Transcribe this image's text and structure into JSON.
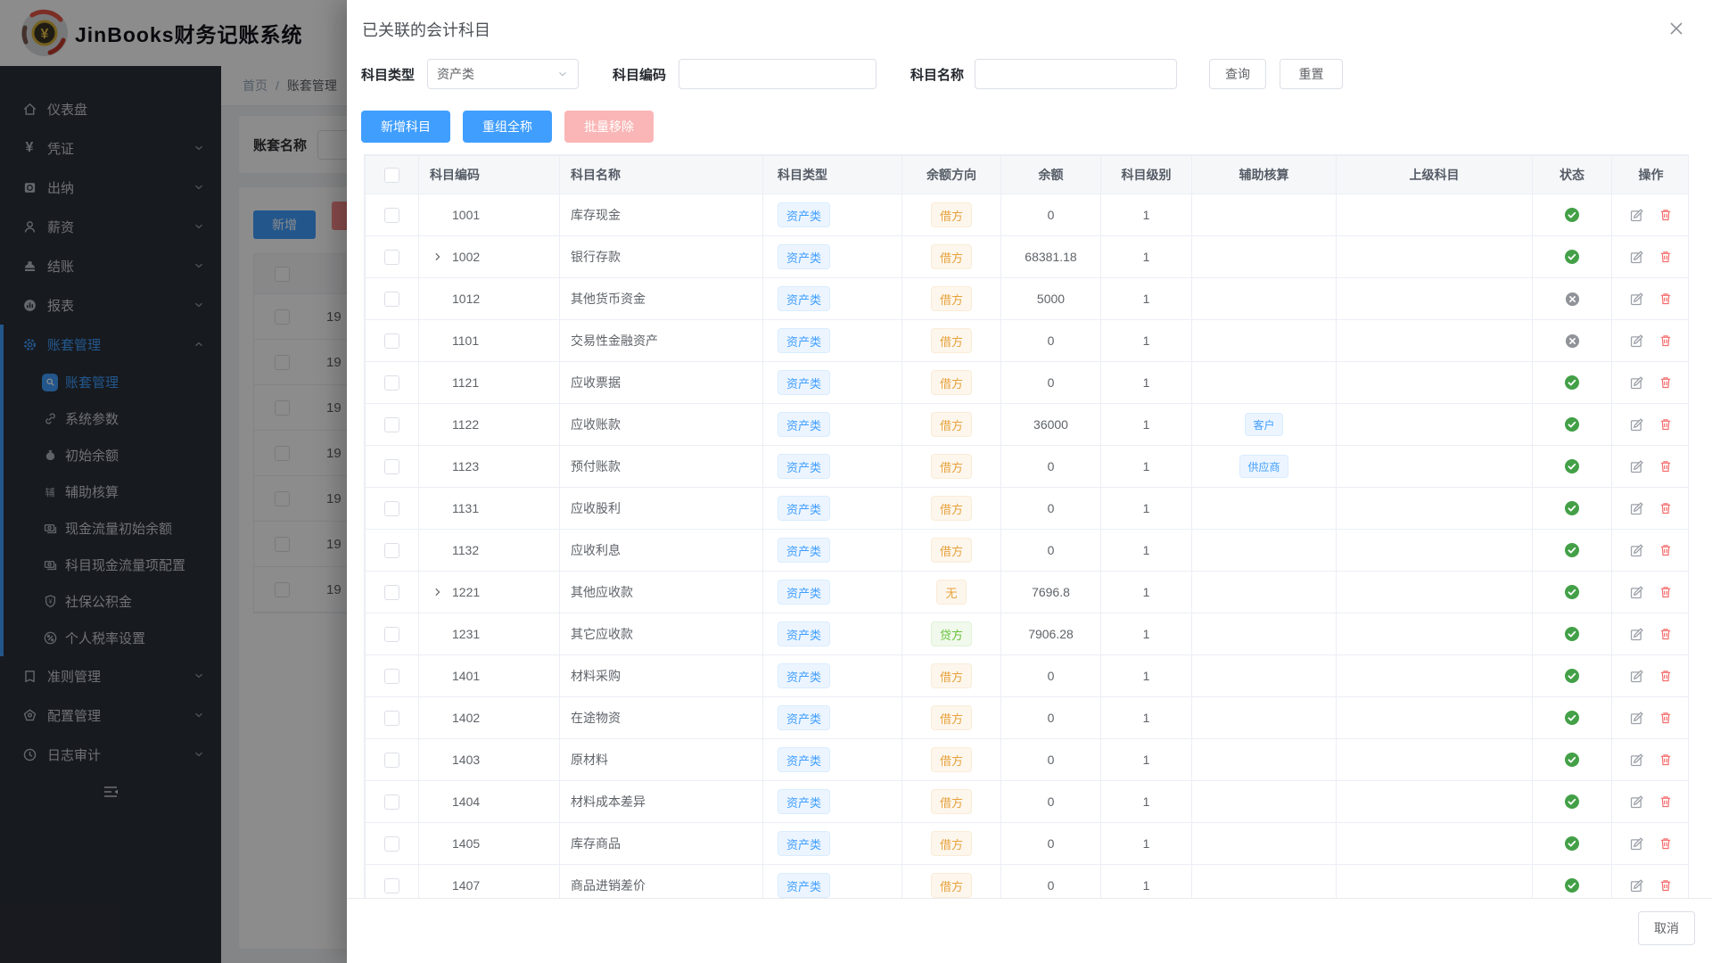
{
  "topbar": {
    "title": "JinBooks财务记账系统"
  },
  "sidebar": {
    "main": [
      {
        "label": "仪表盘",
        "icon": "home-icon",
        "chevron": false
      },
      {
        "label": "凭证",
        "icon": "yen-icon",
        "chevron": true
      },
      {
        "label": "出纳",
        "icon": "ledger-icon",
        "chevron": true
      },
      {
        "label": "薪资",
        "icon": "user-icon",
        "chevron": true
      },
      {
        "label": "结账",
        "icon": "stamp-icon",
        "chevron": true
      },
      {
        "label": "报表",
        "icon": "chart-icon",
        "chevron": true
      },
      {
        "label": "账套管理",
        "icon": "gear-icon",
        "chevron": "up",
        "active": true
      }
    ],
    "submenu": [
      {
        "label": "账套管理",
        "icon": "search-badge-icon",
        "active": true
      },
      {
        "label": "系统参数",
        "icon": "link-icon"
      },
      {
        "label": "初始余额",
        "icon": "moneybag-icon"
      },
      {
        "label": "辅助核算",
        "icon": "fu-char-icon",
        "char": "辅"
      },
      {
        "label": "现金流量初始余额",
        "icon": "cash-icon"
      },
      {
        "label": "科目现金流量项配置",
        "icon": "cash-icon"
      },
      {
        "label": "社保公积金",
        "icon": "shield-icon"
      },
      {
        "label": "个人税率设置",
        "icon": "percent-icon"
      }
    ],
    "bottom": [
      {
        "label": "准则管理",
        "icon": "book-icon",
        "chevron": true
      },
      {
        "label": "配置管理",
        "icon": "pentagon-icon",
        "chevron": true
      },
      {
        "label": "日志审计",
        "icon": "clock-icon",
        "chevron": true
      }
    ]
  },
  "content": {
    "breadcrumb": {
      "home": "首页",
      "sep": "/",
      "current": "账套管理"
    },
    "account_name_label": "账套名称",
    "add_button": "新增",
    "table": {
      "rows": [
        {
          "label": "19"
        },
        {
          "label": "19"
        },
        {
          "label": "19"
        },
        {
          "label": "19"
        },
        {
          "label": "19"
        },
        {
          "label": "19"
        },
        {
          "label": "19"
        }
      ]
    }
  },
  "modal": {
    "title": "已关联的会计科目",
    "filters": {
      "type_label": "科目类型",
      "type_value": "资产类",
      "code_label": "科目编码",
      "code_value": "",
      "name_label": "科目名称",
      "name_value": "",
      "search_button": "查询",
      "reset_button": "重置"
    },
    "actions": {
      "add_subject": "新增科目",
      "rebuild_fullname": "重组全称",
      "batch_remove": "批量移除"
    },
    "table": {
      "headers": [
        "科目编码",
        "科目名称",
        "科目类型",
        "余额方向",
        "余额",
        "科目级别",
        "辅助核算",
        "上级科目",
        "状态",
        "操作"
      ],
      "rows": [
        {
          "code": "1001",
          "name": "库存现金",
          "type": "资产类",
          "dir": "借方",
          "bal": "0",
          "lvl": "1",
          "aux": "",
          "parent": "",
          "status": "on",
          "expand": false
        },
        {
          "code": "1002",
          "name": "银行存款",
          "type": "资产类",
          "dir": "借方",
          "bal": "68381.18",
          "lvl": "1",
          "aux": "",
          "parent": "",
          "status": "on",
          "expand": true
        },
        {
          "code": "1012",
          "name": "其他货币资金",
          "type": "资产类",
          "dir": "借方",
          "bal": "5000",
          "lvl": "1",
          "aux": "",
          "parent": "",
          "status": "off",
          "expand": false
        },
        {
          "code": "1101",
          "name": "交易性金融资产",
          "type": "资产类",
          "dir": "借方",
          "bal": "0",
          "lvl": "1",
          "aux": "",
          "parent": "",
          "status": "off",
          "expand": false
        },
        {
          "code": "1121",
          "name": "应收票据",
          "type": "资产类",
          "dir": "借方",
          "bal": "0",
          "lvl": "1",
          "aux": "",
          "parent": "",
          "status": "on",
          "expand": false
        },
        {
          "code": "1122",
          "name": "应收账款",
          "type": "资产类",
          "dir": "借方",
          "bal": "36000",
          "lvl": "1",
          "aux": "客户",
          "parent": "",
          "status": "on",
          "expand": false
        },
        {
          "code": "1123",
          "name": "预付账款",
          "type": "资产类",
          "dir": "借方",
          "bal": "0",
          "lvl": "1",
          "aux": "供应商",
          "parent": "",
          "status": "on",
          "expand": false
        },
        {
          "code": "1131",
          "name": "应收股利",
          "type": "资产类",
          "dir": "借方",
          "bal": "0",
          "lvl": "1",
          "aux": "",
          "parent": "",
          "status": "on",
          "expand": false
        },
        {
          "code": "1132",
          "name": "应收利息",
          "type": "资产类",
          "dir": "借方",
          "bal": "0",
          "lvl": "1",
          "aux": "",
          "parent": "",
          "status": "on",
          "expand": false
        },
        {
          "code": "1221",
          "name": "其他应收款",
          "type": "资产类",
          "dir": "无",
          "bal": "7696.8",
          "lvl": "1",
          "aux": "",
          "parent": "",
          "status": "on",
          "expand": true
        },
        {
          "code": "1231",
          "name": "其它应收款",
          "type": "资产类",
          "dir": "贷方",
          "bal": "7906.28",
          "lvl": "1",
          "aux": "",
          "parent": "",
          "status": "on",
          "expand": false
        },
        {
          "code": "1401",
          "name": "材料采购",
          "type": "资产类",
          "dir": "借方",
          "bal": "0",
          "lvl": "1",
          "aux": "",
          "parent": "",
          "status": "on",
          "expand": false
        },
        {
          "code": "1402",
          "name": "在途物资",
          "type": "资产类",
          "dir": "借方",
          "bal": "0",
          "lvl": "1",
          "aux": "",
          "parent": "",
          "status": "on",
          "expand": false
        },
        {
          "code": "1403",
          "name": "原材料",
          "type": "资产类",
          "dir": "借方",
          "bal": "0",
          "lvl": "1",
          "aux": "",
          "parent": "",
          "status": "on",
          "expand": false
        },
        {
          "code": "1404",
          "name": "材料成本差异",
          "type": "资产类",
          "dir": "借方",
          "bal": "0",
          "lvl": "1",
          "aux": "",
          "parent": "",
          "status": "on",
          "expand": false
        },
        {
          "code": "1405",
          "name": "库存商品",
          "type": "资产类",
          "dir": "借方",
          "bal": "0",
          "lvl": "1",
          "aux": "",
          "parent": "",
          "status": "on",
          "expand": false
        },
        {
          "code": "1407",
          "name": "商品进销差价",
          "type": "资产类",
          "dir": "借方",
          "bal": "0",
          "lvl": "1",
          "aux": "",
          "parent": "",
          "status": "on",
          "expand": false
        }
      ]
    },
    "footer": {
      "cancel": "取消"
    },
    "colors": {
      "accent_blue": "#409eff",
      "tag_orange": "#e6a23c",
      "tag_green": "#67c23a",
      "status_on": "#43a047",
      "status_off": "#909399",
      "delete_red": "#f56c6c"
    }
  }
}
